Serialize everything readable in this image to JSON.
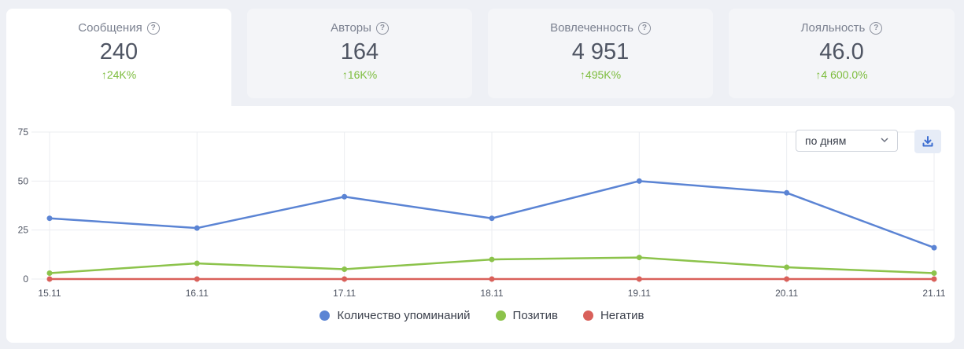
{
  "cards": [
    {
      "title": "Сообщения",
      "value": "240",
      "delta": "↑24K%"
    },
    {
      "title": "Авторы",
      "value": "164",
      "delta": "↑16K%"
    },
    {
      "title": "Вовлеченность",
      "value": "4 951",
      "delta": "↑495K%"
    },
    {
      "title": "Лояльность",
      "value": "46.0",
      "delta": "↑4 600.0%"
    }
  ],
  "help_glyph": "?",
  "controls": {
    "period_select": "по дням"
  },
  "icons": {
    "help": "question-circle-icon",
    "download": "download-icon",
    "dropdown": "chevron-down-icon"
  },
  "chart_data": {
    "type": "line",
    "categories": [
      "15.11",
      "16.11",
      "17.11",
      "18.11",
      "19.11",
      "20.11",
      "21.11"
    ],
    "y_ticks": [
      "0",
      "25",
      "50",
      "75"
    ],
    "ylim": [
      0,
      75
    ],
    "grid": true,
    "legend_position": "bottom-center",
    "series": [
      {
        "name": "Количество упоминаний",
        "color": "#5b84d4",
        "values": [
          31,
          26,
          42,
          31,
          50,
          44,
          16
        ]
      },
      {
        "name": "Позитив",
        "color": "#8cc34b",
        "values": [
          3,
          8,
          5,
          10,
          11,
          6,
          3
        ]
      },
      {
        "name": "Негатив",
        "color": "#d9605a",
        "values": [
          0,
          0,
          0,
          0,
          0,
          0,
          0
        ]
      }
    ]
  }
}
